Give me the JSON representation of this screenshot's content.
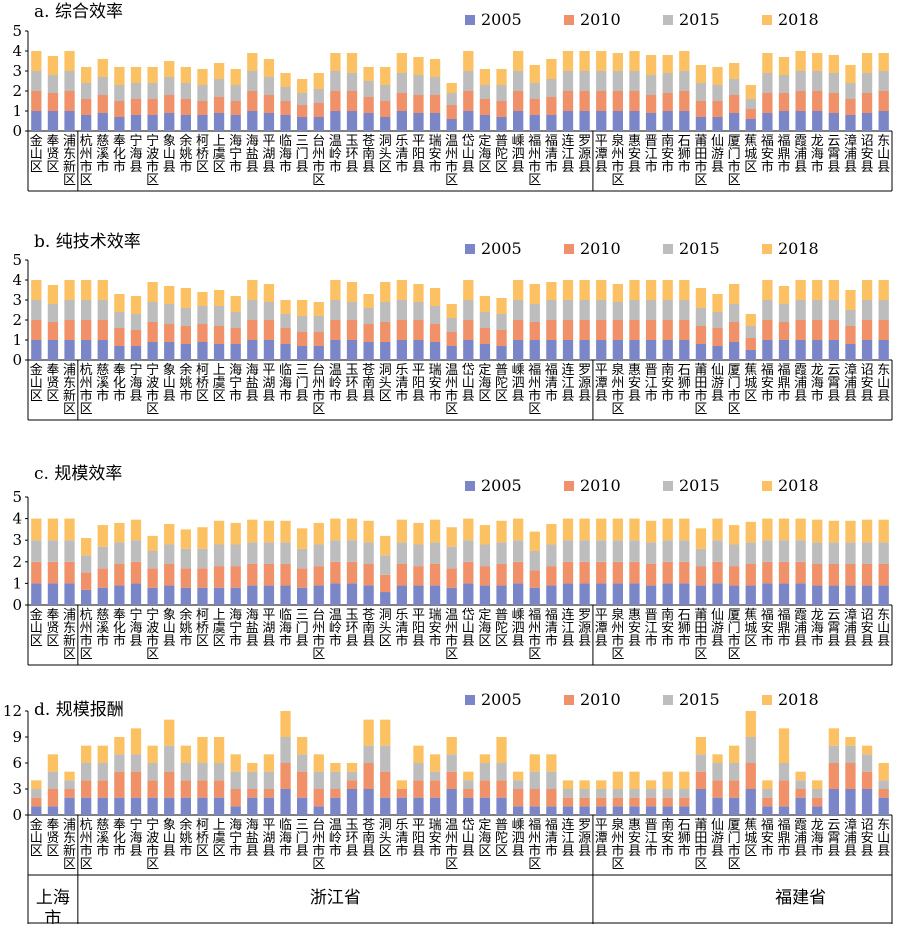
{
  "legend_labels": [
    "2005",
    "2010",
    "2015",
    "2018"
  ],
  "colors": [
    "#7b86c9",
    "#f0916a",
    "#bdbdbd",
    "#fcc163"
  ],
  "regions": [
    {
      "name": "上海市",
      "count": 3
    },
    {
      "name": "浙江省",
      "count": 31
    },
    {
      "name": "福建省",
      "count": 25
    }
  ],
  "categories": [
    "金山区",
    "奉贤区",
    "浦东新区",
    "杭州市区",
    "慈溪市",
    "奉化市",
    "宁海县",
    "宁波市区",
    "象山县",
    "余姚市",
    "柯桥区",
    "上虞区",
    "海宁市",
    "海盐县",
    "平湖县",
    "临海市",
    "三门县",
    "台州市区",
    "温岭市",
    "玉环县",
    "苍南县",
    "洞头区",
    "乐清市",
    "平阳县",
    "瑞安市",
    "温州市区",
    "岱山县",
    "定海区",
    "普陀区",
    "嵊泗县",
    "福州市区",
    "福清市",
    "连江县",
    "罗源县",
    "平潭县",
    "泉州市区",
    "惠安县",
    "晋江市",
    "南安市",
    "石狮市",
    "莆田市区",
    "仙游县",
    "厦门市区",
    "蕉城区",
    "福安市",
    "福鼎市",
    "霞浦县",
    "龙海市",
    "云霄县",
    "漳浦县",
    "诏安县",
    "东山县"
  ],
  "chart_data": [
    {
      "type": "bar",
      "stacked": true,
      "title": "a. 综合效率",
      "ylim": [
        0,
        5
      ],
      "yticks": [
        0,
        1,
        2,
        3,
        4,
        5
      ],
      "legend": "top-right",
      "series": [
        {
          "name": "2005",
          "values": [
            1.0,
            1.0,
            1.0,
            0.8,
            0.9,
            0.7,
            0.8,
            0.8,
            0.9,
            0.8,
            0.8,
            0.9,
            0.8,
            1.0,
            0.9,
            0.8,
            0.7,
            0.7,
            1.0,
            1.0,
            0.9,
            0.7,
            1.0,
            0.9,
            0.9,
            0.6,
            1.0,
            0.8,
            0.7,
            1.0,
            0.8,
            0.8,
            1.0,
            1.0,
            1.0,
            1.0,
            1.0,
            0.9,
            1.0,
            1.0,
            0.7,
            0.7,
            0.9,
            0.6,
            0.9,
            1.0,
            1.0,
            1.0,
            0.9,
            0.8,
            0.9,
            1.0
          ]
        },
        {
          "name": "2010",
          "values": [
            1.0,
            0.9,
            1.0,
            0.8,
            0.9,
            0.8,
            0.8,
            0.8,
            0.9,
            0.8,
            0.7,
            0.8,
            0.7,
            1.0,
            0.9,
            0.7,
            0.6,
            0.7,
            1.0,
            1.0,
            0.8,
            0.8,
            0.9,
            0.9,
            0.9,
            0.7,
            1.0,
            0.8,
            0.8,
            1.0,
            0.8,
            0.9,
            1.0,
            1.0,
            1.0,
            1.0,
            1.0,
            0.9,
            0.9,
            1.0,
            0.8,
            0.8,
            0.9,
            0.5,
            1.0,
            0.9,
            1.0,
            1.0,
            1.0,
            0.8,
            1.0,
            1.0
          ]
        },
        {
          "name": "2015",
          "values": [
            1.0,
            0.9,
            1.0,
            0.8,
            0.9,
            0.8,
            0.8,
            0.8,
            0.9,
            0.8,
            0.8,
            0.9,
            0.8,
            1.0,
            0.9,
            0.7,
            0.6,
            0.7,
            1.0,
            0.9,
            0.8,
            0.8,
            1.0,
            1.0,
            0.9,
            0.6,
            1.0,
            0.7,
            0.8,
            1.0,
            0.8,
            0.9,
            1.0,
            1.0,
            1.0,
            1.0,
            1.0,
            1.0,
            1.0,
            1.0,
            0.9,
            0.8,
            0.8,
            0.5,
            1.0,
            0.9,
            1.0,
            1.0,
            1.0,
            0.8,
            1.0,
            1.0
          ]
        },
        {
          "name": "2018",
          "values": [
            1.0,
            0.95,
            1.0,
            0.8,
            0.9,
            0.9,
            0.8,
            0.8,
            0.8,
            0.8,
            0.8,
            0.8,
            0.8,
            0.9,
            0.9,
            0.7,
            0.7,
            0.8,
            0.9,
            1.0,
            0.7,
            0.9,
            1.0,
            0.9,
            0.9,
            0.5,
            1.0,
            0.8,
            0.8,
            1.0,
            0.9,
            1.0,
            1.0,
            1.0,
            1.0,
            0.9,
            1.0,
            1.0,
            0.9,
            1.0,
            0.9,
            0.9,
            0.8,
            0.7,
            1.0,
            0.9,
            1.0,
            0.9,
            0.9,
            0.9,
            1.0,
            0.9
          ]
        }
      ]
    },
    {
      "type": "bar",
      "stacked": true,
      "title": "b. 纯技术效率",
      "ylim": [
        0,
        5
      ],
      "yticks": [
        0,
        1,
        2,
        3,
        4,
        5
      ],
      "legend": "top-right",
      "series": [
        {
          "name": "2005",
          "values": [
            1.0,
            1.0,
            1.0,
            1.0,
            1.0,
            0.7,
            0.7,
            0.9,
            0.9,
            0.8,
            0.9,
            0.8,
            0.8,
            1.0,
            1.0,
            0.8,
            0.7,
            0.7,
            1.0,
            1.0,
            0.9,
            0.9,
            1.0,
            1.0,
            0.9,
            0.7,
            1.0,
            0.8,
            0.7,
            1.0,
            1.0,
            1.0,
            1.0,
            1.0,
            1.0,
            1.0,
            1.0,
            1.0,
            1.0,
            1.0,
            0.8,
            0.7,
            0.9,
            0.5,
            1.0,
            1.0,
            1.0,
            1.0,
            1.0,
            0.8,
            1.0,
            1.0
          ]
        },
        {
          "name": "2010",
          "values": [
            1.0,
            0.9,
            1.0,
            1.0,
            1.0,
            0.9,
            0.8,
            1.0,
            0.9,
            0.9,
            0.9,
            0.9,
            0.8,
            1.0,
            1.0,
            0.8,
            0.7,
            0.7,
            1.0,
            1.0,
            0.9,
            1.0,
            1.0,
            1.0,
            0.9,
            0.7,
            1.0,
            0.8,
            0.8,
            1.0,
            0.9,
            1.0,
            1.0,
            1.0,
            1.0,
            1.0,
            1.0,
            1.0,
            1.0,
            1.0,
            0.9,
            0.9,
            1.0,
            0.6,
            1.0,
            0.9,
            1.0,
            1.0,
            1.0,
            0.9,
            1.0,
            1.0
          ]
        },
        {
          "name": "2015",
          "values": [
            1.0,
            0.9,
            1.0,
            1.0,
            1.0,
            0.8,
            0.8,
            1.0,
            1.0,
            0.9,
            0.9,
            1.0,
            0.8,
            1.0,
            0.9,
            0.7,
            0.8,
            0.8,
            1.0,
            0.9,
            0.8,
            1.0,
            1.0,
            0.9,
            0.9,
            0.7,
            1.0,
            0.8,
            0.8,
            1.0,
            0.9,
            1.0,
            1.0,
            1.0,
            1.0,
            0.9,
            1.0,
            1.0,
            1.0,
            1.0,
            0.9,
            0.8,
            0.9,
            0.6,
            1.0,
            0.9,
            1.0,
            1.0,
            1.0,
            0.8,
            1.0,
            1.0
          ]
        },
        {
          "name": "2018",
          "values": [
            1.0,
            0.95,
            1.0,
            1.0,
            1.0,
            0.9,
            0.9,
            1.0,
            0.9,
            1.0,
            0.7,
            0.8,
            0.8,
            1.0,
            0.9,
            0.7,
            0.8,
            0.7,
            1.0,
            1.0,
            0.7,
            1.0,
            1.0,
            0.9,
            0.9,
            0.7,
            1.0,
            0.8,
            0.8,
            1.0,
            1.0,
            0.9,
            1.0,
            1.0,
            1.0,
            0.9,
            1.0,
            1.0,
            1.0,
            1.0,
            1.0,
            0.9,
            1.0,
            0.6,
            1.0,
            0.9,
            1.0,
            1.0,
            1.0,
            1.0,
            1.0,
            1.0
          ]
        }
      ]
    },
    {
      "type": "bar",
      "stacked": true,
      "title": "c. 规模效率",
      "ylim": [
        0,
        5
      ],
      "yticks": [
        0,
        1,
        2,
        3,
        4,
        5
      ],
      "legend": "top-right",
      "series": [
        {
          "name": "2005",
          "values": [
            1.0,
            1.0,
            1.0,
            0.7,
            0.8,
            0.9,
            1.0,
            0.8,
            0.9,
            0.8,
            0.8,
            0.8,
            0.8,
            0.9,
            0.9,
            0.9,
            0.8,
            0.9,
            1.0,
            1.0,
            0.9,
            0.6,
            0.9,
            0.9,
            0.9,
            0.8,
            1.0,
            0.9,
            0.9,
            1.0,
            0.8,
            0.9,
            1.0,
            1.0,
            1.0,
            1.0,
            1.0,
            0.9,
            1.0,
            1.0,
            0.9,
            1.0,
            0.9,
            0.9,
            1.0,
            1.0,
            1.0,
            0.9,
            0.9,
            0.9,
            0.9,
            0.9
          ]
        },
        {
          "name": "2010",
          "values": [
            1.0,
            1.0,
            1.0,
            0.8,
            0.9,
            1.0,
            1.0,
            0.9,
            1.0,
            0.9,
            0.9,
            1.0,
            1.0,
            1.0,
            1.0,
            1.0,
            0.9,
            0.9,
            1.0,
            1.0,
            1.0,
            0.8,
            1.0,
            0.9,
            1.0,
            0.9,
            1.0,
            0.9,
            1.0,
            1.0,
            0.8,
            0.9,
            1.0,
            1.0,
            1.0,
            1.0,
            1.0,
            1.0,
            1.0,
            1.0,
            0.9,
            1.0,
            0.9,
            1.0,
            1.0,
            1.0,
            1.0,
            1.0,
            1.0,
            1.0,
            1.0,
            1.0
          ]
        },
        {
          "name": "2015",
          "values": [
            1.0,
            1.0,
            1.0,
            0.8,
            1.0,
            1.0,
            1.0,
            0.8,
            0.9,
            0.9,
            0.9,
            1.0,
            1.0,
            1.0,
            1.0,
            1.0,
            0.9,
            1.0,
            1.0,
            1.0,
            1.0,
            0.9,
            1.0,
            1.0,
            1.0,
            1.0,
            1.0,
            1.0,
            1.0,
            1.0,
            0.9,
            1.0,
            1.0,
            1.0,
            1.0,
            1.0,
            1.0,
            1.0,
            1.0,
            1.0,
            0.8,
            1.0,
            1.0,
            1.0,
            1.0,
            1.0,
            1.0,
            1.0,
            1.0,
            1.0,
            1.0,
            1.0
          ]
        },
        {
          "name": "2018",
          "values": [
            1.0,
            1.0,
            1.0,
            0.8,
            1.0,
            0.9,
            0.95,
            0.7,
            0.95,
            0.9,
            1.0,
            1.1,
            1.0,
            1.05,
            1.0,
            1.0,
            0.95,
            1.0,
            1.0,
            1.0,
            1.0,
            0.9,
            1.05,
            1.0,
            1.05,
            0.9,
            1.0,
            0.9,
            1.0,
            1.0,
            0.9,
            0.95,
            1.0,
            1.0,
            1.0,
            1.0,
            1.0,
            1.0,
            1.0,
            1.0,
            0.95,
            1.0,
            0.9,
            0.95,
            1.0,
            1.0,
            1.0,
            1.05,
            1.0,
            1.0,
            1.05,
            1.05
          ]
        }
      ]
    },
    {
      "type": "bar",
      "stacked": true,
      "title": "d. 规模报酬",
      "ylim": [
        0,
        12
      ],
      "yticks": [
        0,
        3,
        6,
        9,
        12
      ],
      "legend": "top-right",
      "series": [
        {
          "name": "2005",
          "values": [
            1,
            1,
            2,
            2,
            2,
            2,
            2,
            2,
            2,
            2,
            2,
            2,
            1,
            2,
            2,
            3,
            2,
            1,
            2,
            3,
            3,
            2,
            2,
            2,
            2,
            3,
            2,
            2,
            2,
            1,
            1,
            1,
            1,
            1,
            1,
            1,
            1,
            1,
            1,
            1,
            3,
            2,
            2,
            3,
            1,
            1,
            2,
            1,
            3,
            3,
            3,
            2
          ]
        },
        {
          "name": "2010",
          "values": [
            1,
            2,
            1,
            2,
            2,
            3,
            3,
            2,
            3,
            2,
            2,
            2,
            2,
            1,
            1,
            3,
            3,
            2,
            1,
            1,
            3,
            3,
            1,
            2,
            2,
            2,
            1,
            2,
            2,
            2,
            2,
            2,
            1,
            1,
            1,
            1,
            1,
            1,
            1,
            1,
            2,
            2,
            2,
            3,
            1,
            3,
            1,
            1,
            3,
            3,
            2,
            1
          ]
        },
        {
          "name": "2015",
          "values": [
            1,
            2,
            1,
            2,
            2,
            2,
            2,
            2,
            3,
            2,
            2,
            2,
            2,
            2,
            2,
            3,
            2,
            2,
            2,
            1,
            2,
            3,
            0,
            2,
            1,
            2,
            1,
            2,
            2,
            1,
            2,
            2,
            1,
            1,
            1,
            1,
            1,
            1,
            1,
            1,
            2,
            2,
            2,
            3,
            1,
            2,
            1,
            1,
            2,
            2,
            2,
            1
          ]
        },
        {
          "name": "2018",
          "values": [
            1,
            2,
            1,
            2,
            2,
            2,
            3,
            2,
            3,
            2,
            3,
            3,
            2,
            1,
            2,
            3,
            2,
            2,
            1,
            1,
            3,
            3,
            1,
            2,
            2,
            2,
            1,
            1,
            3,
            1,
            2,
            2,
            1,
            1,
            1,
            2,
            2,
            1,
            2,
            2,
            2,
            1,
            2,
            3,
            1,
            4,
            1,
            1,
            2,
            1,
            1,
            2
          ]
        }
      ]
    }
  ]
}
